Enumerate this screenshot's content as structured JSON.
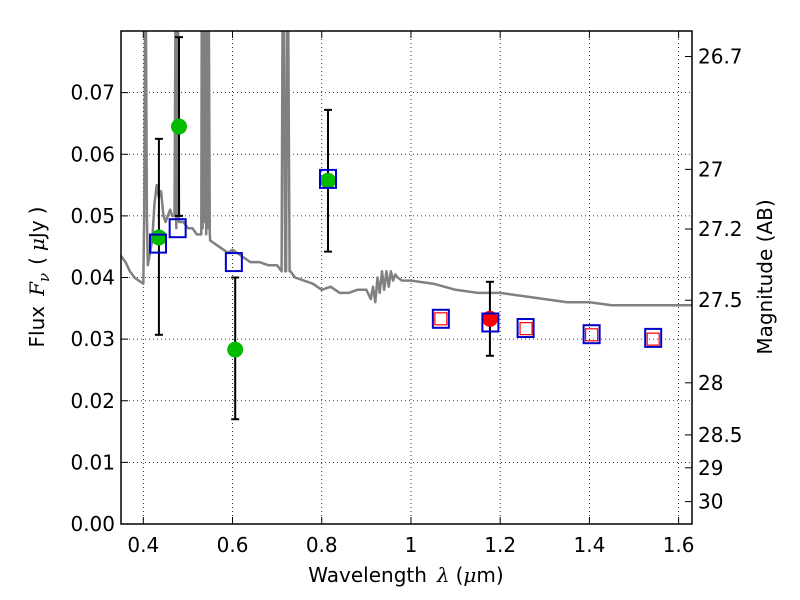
{
  "chart_data": {
    "type": "scatter",
    "xlabel": {
      "prefix": "Wavelength",
      "symbol": "λ",
      "unit_open": "(",
      "unit_mu": "μ",
      "unit_rest": "m)"
    },
    "ylabel": {
      "prefix": "Flux",
      "symbol": "F",
      "subscript": "ν",
      "unit_open": "(",
      "unit_mu": "μ",
      "unit_rest": "Jy",
      "unit_close": ")"
    },
    "y2label": "Magnitude (AB)",
    "xlim": [
      0.35,
      1.63
    ],
    "ylim": [
      0.0,
      0.08
    ],
    "grid": true,
    "x_ticks": [
      {
        "value": 0.4,
        "label": "0.4"
      },
      {
        "value": 0.6,
        "label": "0.6"
      },
      {
        "value": 0.8,
        "label": "0.8"
      },
      {
        "value": 1.0,
        "label": "1"
      },
      {
        "value": 1.2,
        "label": "1.2"
      },
      {
        "value": 1.4,
        "label": "1.4"
      },
      {
        "value": 1.6,
        "label": "1.6"
      }
    ],
    "y_ticks": [
      {
        "value": 0.0,
        "label": "0.00"
      },
      {
        "value": 0.01,
        "label": "0.01"
      },
      {
        "value": 0.02,
        "label": "0.02"
      },
      {
        "value": 0.03,
        "label": "0.03"
      },
      {
        "value": 0.04,
        "label": "0.04"
      },
      {
        "value": 0.05,
        "label": "0.05"
      },
      {
        "value": 0.06,
        "label": "0.06"
      },
      {
        "value": 0.07,
        "label": "0.07"
      }
    ],
    "mag_ticks": [
      {
        "value": 26.7,
        "label": "26.7"
      },
      {
        "value": 27.0,
        "label": "27"
      },
      {
        "value": 27.2,
        "label": "27.2"
      },
      {
        "value": 27.5,
        "label": "27.5"
      },
      {
        "value": 28.0,
        "label": "28"
      },
      {
        "value": 28.5,
        "label": "28.5"
      },
      {
        "value": 29.0,
        "label": "29"
      },
      {
        "value": 30.0,
        "label": "30"
      }
    ],
    "series": [
      {
        "name": "template spectrum",
        "kind": "line",
        "color": "#808080",
        "x": [
          0.35,
          0.36,
          0.37,
          0.38,
          0.39,
          0.4,
          0.402,
          0.404,
          0.406,
          0.408,
          0.41,
          0.415,
          0.42,
          0.425,
          0.43,
          0.435,
          0.44,
          0.445,
          0.45,
          0.455,
          0.46,
          0.465,
          0.47,
          0.472,
          0.474,
          0.476,
          0.478,
          0.48,
          0.49,
          0.5,
          0.51,
          0.52,
          0.53,
          0.531,
          0.533,
          0.535,
          0.537,
          0.539,
          0.541,
          0.543,
          0.545,
          0.547,
          0.549,
          0.55,
          0.56,
          0.57,
          0.58,
          0.59,
          0.6,
          0.62,
          0.64,
          0.66,
          0.68,
          0.7,
          0.71,
          0.712,
          0.715,
          0.718,
          0.72,
          0.722,
          0.725,
          0.728,
          0.73,
          0.735,
          0.74,
          0.76,
          0.78,
          0.8,
          0.82,
          0.84,
          0.86,
          0.88,
          0.9,
          0.91,
          0.915,
          0.92,
          0.925,
          0.93,
          0.935,
          0.94,
          0.945,
          0.95,
          0.955,
          0.96,
          0.965,
          0.97,
          0.98,
          1.0,
          1.05,
          1.1,
          1.15,
          1.2,
          1.25,
          1.3,
          1.35,
          1.4,
          1.45,
          1.5,
          1.55,
          1.6,
          1.63
        ],
        "y": [
          0.0435,
          0.0425,
          0.041,
          0.04,
          0.0395,
          0.039,
          0.05,
          0.08,
          0.08,
          0.05,
          0.042,
          0.044,
          0.046,
          0.052,
          0.055,
          0.053,
          0.054,
          0.05,
          0.049,
          0.05,
          0.051,
          0.05,
          0.05,
          0.08,
          0.048,
          0.08,
          0.08,
          0.049,
          0.049,
          0.048,
          0.048,
          0.047,
          0.047,
          0.08,
          0.048,
          0.08,
          0.049,
          0.08,
          0.047,
          0.08,
          0.048,
          0.08,
          0.047,
          0.046,
          0.0455,
          0.045,
          0.0445,
          0.044,
          0.0445,
          0.0435,
          0.0425,
          0.0425,
          0.042,
          0.042,
          0.041,
          0.08,
          0.08,
          0.041,
          0.041,
          0.08,
          0.08,
          0.041,
          0.041,
          0.0405,
          0.04,
          0.0395,
          0.039,
          0.038,
          0.0385,
          0.0375,
          0.0375,
          0.038,
          0.038,
          0.0365,
          0.0385,
          0.036,
          0.04,
          0.0375,
          0.041,
          0.038,
          0.041,
          0.0385,
          0.041,
          0.0395,
          0.0405,
          0.04,
          0.0395,
          0.0395,
          0.039,
          0.038,
          0.0375,
          0.0375,
          0.037,
          0.0365,
          0.036,
          0.036,
          0.0355,
          0.0355,
          0.0355,
          0.0355,
          0.0355
        ]
      },
      {
        "name": "observed (green)",
        "kind": "points",
        "color": "#00bb00",
        "points": [
          {
            "x": 0.435,
            "y": 0.0465,
            "err_lo": 0.0307,
            "err_hi": 0.0625
          },
          {
            "x": 0.48,
            "y": 0.0645,
            "err_lo": 0.05,
            "err_hi": 0.079
          },
          {
            "x": 0.606,
            "y": 0.0283,
            "err_lo": 0.017,
            "err_hi": 0.04
          },
          {
            "x": 0.814,
            "y": 0.0557,
            "err_lo": 0.0442,
            "err_hi": 0.0672
          }
        ]
      },
      {
        "name": "observed (red)",
        "kind": "points",
        "color": "#ff0000",
        "points": [
          {
            "x": 1.177,
            "y": 0.0333,
            "err_lo": 0.0273,
            "err_hi": 0.0393
          }
        ]
      },
      {
        "name": "model photometry (blue squares)",
        "kind": "squares",
        "color": "#0000cc",
        "points": [
          {
            "x": 0.433,
            "y": 0.0455
          },
          {
            "x": 0.477,
            "y": 0.048
          },
          {
            "x": 0.603,
            "y": 0.0425
          },
          {
            "x": 0.814,
            "y": 0.056
          },
          {
            "x": 1.067,
            "y": 0.0333
          },
          {
            "x": 1.178,
            "y": 0.0327
          },
          {
            "x": 1.257,
            "y": 0.0318
          },
          {
            "x": 1.405,
            "y": 0.0308
          },
          {
            "x": 1.543,
            "y": 0.0302
          }
        ]
      },
      {
        "name": "model photometry (red squares)",
        "kind": "squares-small",
        "color": "#ff0000",
        "points": [
          {
            "x": 1.067,
            "y": 0.0333
          },
          {
            "x": 1.258,
            "y": 0.0317
          },
          {
            "x": 1.405,
            "y": 0.0307
          },
          {
            "x": 1.543,
            "y": 0.03
          }
        ]
      }
    ]
  }
}
